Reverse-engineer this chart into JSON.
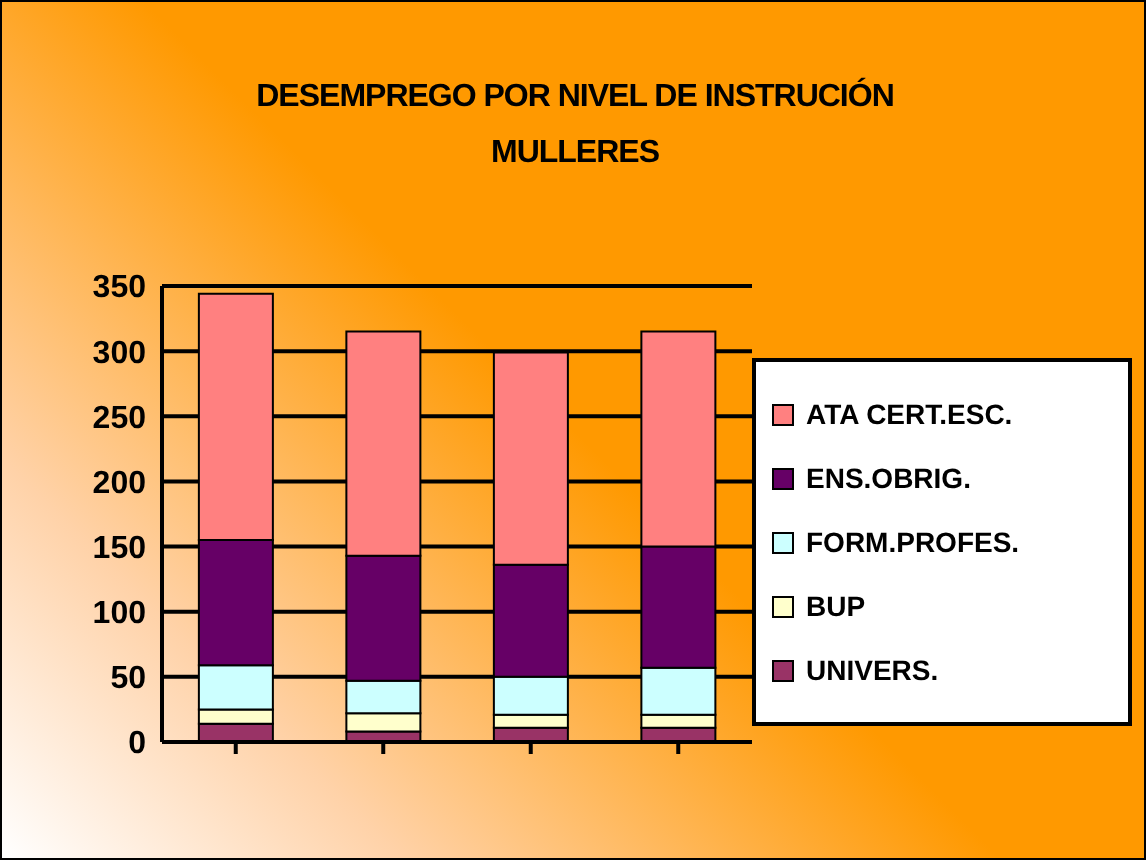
{
  "chart_data": {
    "type": "bar",
    "title": "DESEMPREGO POR NIVEL DE INSTRUCIÓN",
    "subtitle": "MULLERES",
    "stacked": true,
    "categories": [
      null,
      null,
      null,
      null
    ],
    "series": [
      {
        "name": "UNIVERS.",
        "color": "#993366",
        "values": [
          14,
          8,
          11,
          11
        ]
      },
      {
        "name": "BUP",
        "color": "#ffffcc",
        "values": [
          11,
          14,
          10,
          10
        ]
      },
      {
        "name": "FORM.PROFES.",
        "color": "#ccffff",
        "values": [
          34,
          25,
          29,
          36
        ]
      },
      {
        "name": "ENS.OBRIG.",
        "color": "#660066",
        "values": [
          96,
          96,
          86,
          93
        ]
      },
      {
        "name": "ATA CERT.ESC.",
        "color": "#ff8080",
        "values": [
          189,
          172,
          163,
          165
        ]
      }
    ],
    "ylim": [
      0,
      350
    ],
    "yticks": [
      0,
      50,
      100,
      150,
      200,
      250,
      300,
      350
    ],
    "grid": "y",
    "legend": "right"
  }
}
